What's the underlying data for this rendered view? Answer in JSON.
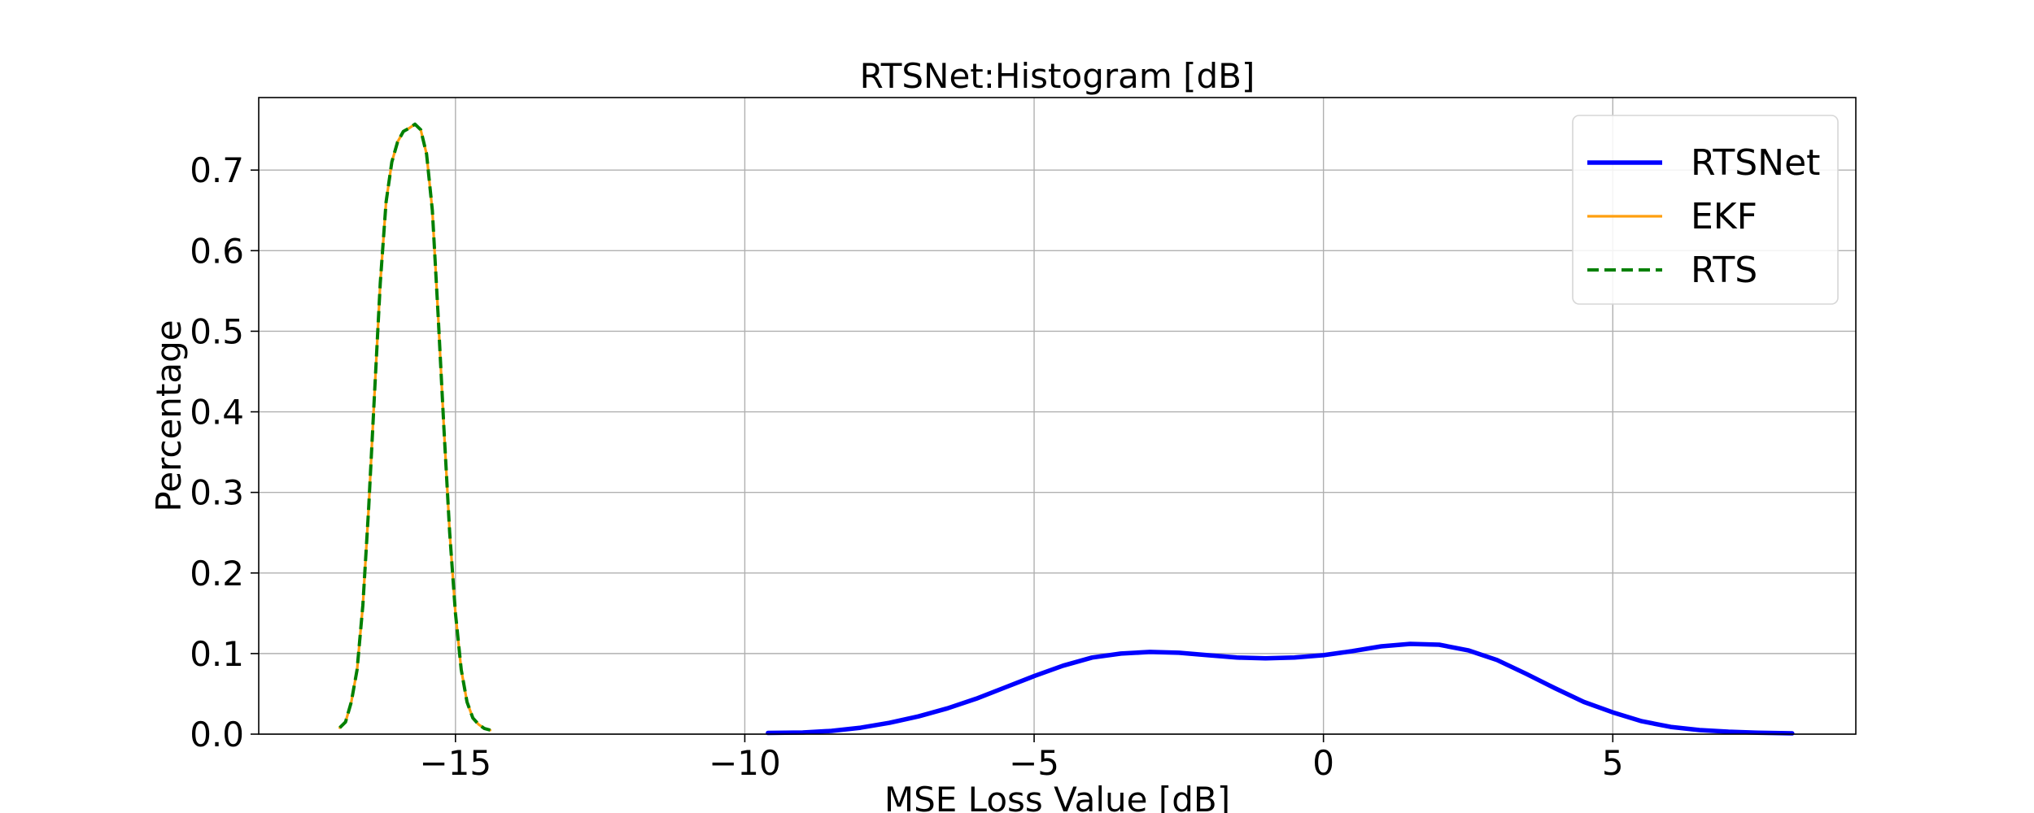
{
  "chart_data": {
    "type": "line",
    "title": "RTSNet:Histogram [dB]",
    "xlabel": "MSE Loss Value [dB]",
    "ylabel": "Percentage",
    "xlim": [
      -18.4,
      9.2
    ],
    "ylim": [
      0.0,
      0.79
    ],
    "xticks": [
      -15,
      -10,
      -5,
      0,
      5
    ],
    "xtick_labels": [
      "−15",
      "−10",
      "−5",
      "0",
      "5"
    ],
    "yticks": [
      0.0,
      0.1,
      0.2,
      0.3,
      0.4,
      0.5,
      0.6,
      0.7
    ],
    "ytick_labels": [
      "0.0",
      "0.1",
      "0.2",
      "0.3",
      "0.4",
      "0.5",
      "0.6",
      "0.7"
    ],
    "grid": true,
    "legend": "top-right",
    "series": [
      {
        "name": "RTSNet",
        "color": "#0000ff",
        "style": "solid",
        "x": [
          -9.6,
          -9.0,
          -8.5,
          -8.0,
          -7.5,
          -7.0,
          -6.5,
          -6.0,
          -5.5,
          -5.0,
          -4.5,
          -4.0,
          -3.5,
          -3.0,
          -2.5,
          -2.0,
          -1.5,
          -1.0,
          -0.5,
          0.0,
          0.5,
          1.0,
          1.5,
          2.0,
          2.5,
          3.0,
          3.5,
          4.0,
          4.5,
          5.0,
          5.5,
          6.0,
          6.5,
          7.0,
          7.5,
          8.1
        ],
        "y": [
          0.0015,
          0.002,
          0.004,
          0.008,
          0.014,
          0.022,
          0.032,
          0.044,
          0.058,
          0.072,
          0.085,
          0.095,
          0.1,
          0.102,
          0.101,
          0.098,
          0.095,
          0.094,
          0.095,
          0.098,
          0.103,
          0.109,
          0.112,
          0.111,
          0.104,
          0.092,
          0.075,
          0.057,
          0.04,
          0.027,
          0.016,
          0.009,
          0.005,
          0.003,
          0.0018,
          0.001
        ]
      },
      {
        "name": "EKF",
        "color": "#ff9f0e",
        "style": "solid",
        "x": [
          -17.0,
          -16.9,
          -16.8,
          -16.7,
          -16.6,
          -16.5,
          -16.4,
          -16.3,
          -16.2,
          -16.1,
          -16.0,
          -15.9,
          -15.8,
          -15.7,
          -15.6,
          -15.5,
          -15.4,
          -15.3,
          -15.2,
          -15.1,
          -15.0,
          -14.9,
          -14.8,
          -14.7,
          -14.6,
          -14.5,
          -14.4
        ],
        "y": [
          0.008,
          0.015,
          0.04,
          0.08,
          0.16,
          0.28,
          0.42,
          0.56,
          0.66,
          0.71,
          0.735,
          0.748,
          0.752,
          0.757,
          0.75,
          0.72,
          0.65,
          0.52,
          0.38,
          0.25,
          0.15,
          0.08,
          0.04,
          0.02,
          0.012,
          0.007,
          0.005
        ]
      },
      {
        "name": "RTS",
        "color": "#008000",
        "style": "dashed",
        "x": [
          -17.0,
          -16.9,
          -16.8,
          -16.7,
          -16.6,
          -16.5,
          -16.4,
          -16.3,
          -16.2,
          -16.1,
          -16.0,
          -15.9,
          -15.8,
          -15.7,
          -15.6,
          -15.5,
          -15.4,
          -15.3,
          -15.2,
          -15.1,
          -15.0,
          -14.9,
          -14.8,
          -14.7,
          -14.6,
          -14.5,
          -14.4
        ],
        "y": [
          0.008,
          0.015,
          0.04,
          0.08,
          0.16,
          0.28,
          0.42,
          0.56,
          0.66,
          0.71,
          0.735,
          0.748,
          0.752,
          0.757,
          0.75,
          0.72,
          0.65,
          0.52,
          0.38,
          0.25,
          0.15,
          0.08,
          0.04,
          0.02,
          0.012,
          0.007,
          0.005
        ]
      }
    ]
  }
}
